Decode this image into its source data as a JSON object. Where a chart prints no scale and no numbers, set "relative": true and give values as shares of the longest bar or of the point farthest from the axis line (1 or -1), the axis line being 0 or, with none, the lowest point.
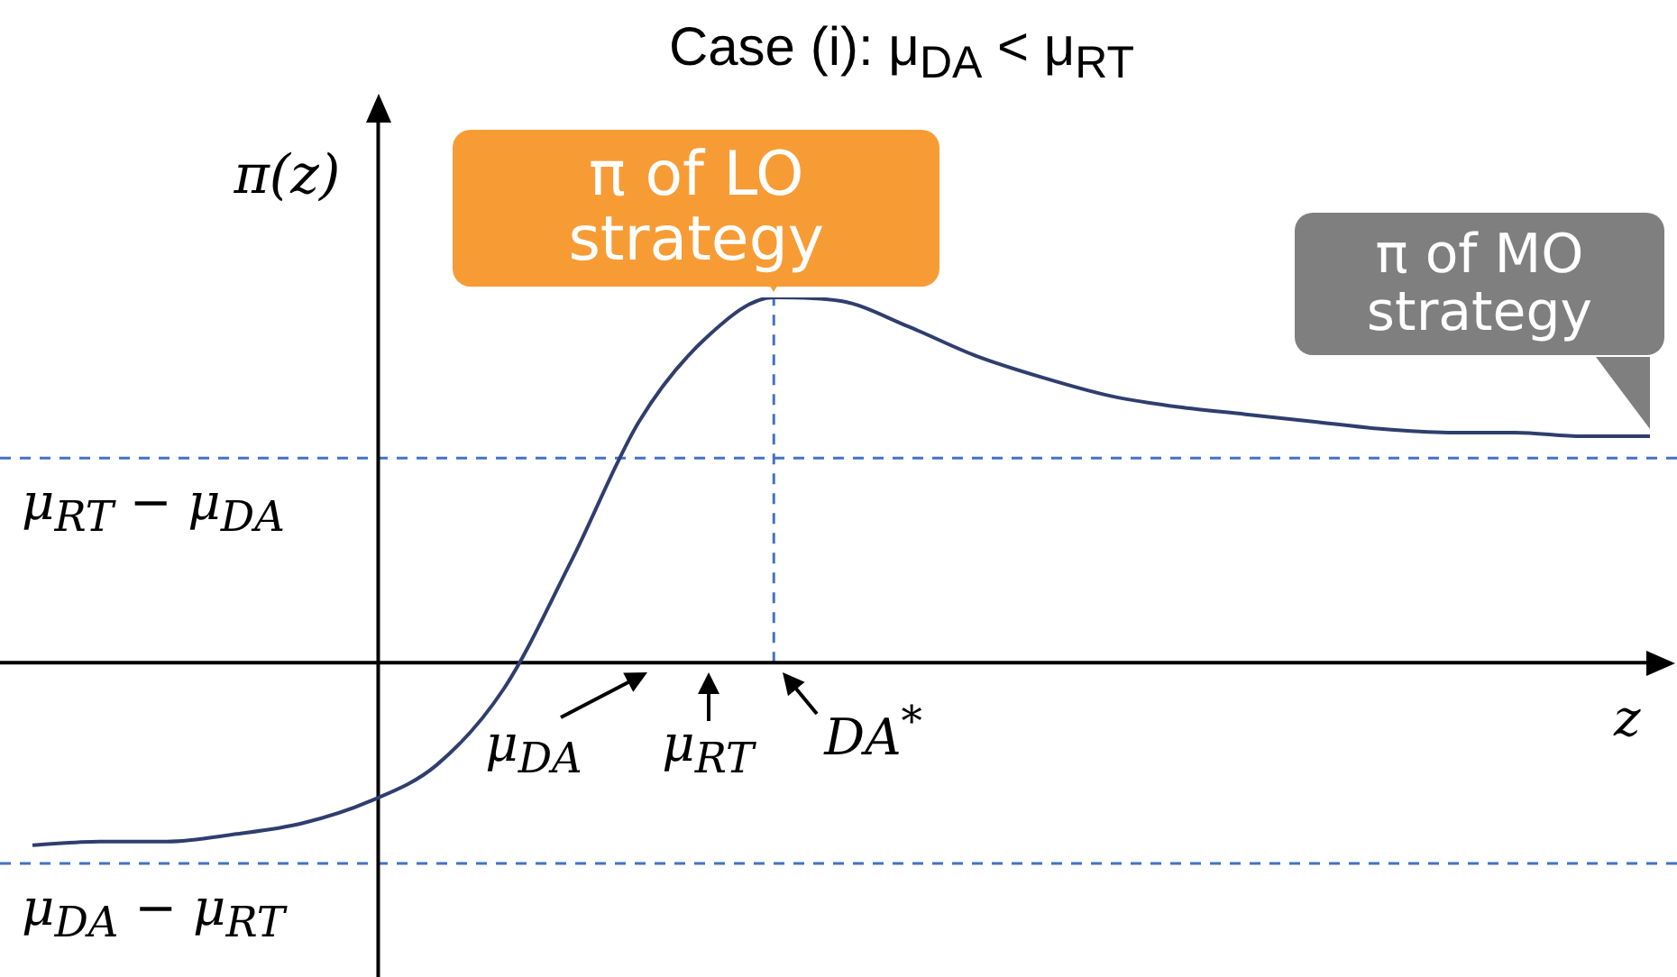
{
  "chart_data": {
    "type": "line",
    "title": "Case (i): μ$_{DA}$ < μ$_{RT}$",
    "xlabel": "z",
    "relative": true,
    "marker": "none",
    "line_style": "solid",
    "categories": [
      null,
      null,
      null,
      null,
      null,
      null,
      null,
      null,
      null,
      null,
      null,
      null,
      null,
      null,
      null,
      null,
      null,
      null,
      null,
      null,
      null,
      null,
      null,
      null,
      null
    ],
    "series": [
      {
        "color": "#2f3e6e",
        "values": [
          -0.5,
          -0.49,
          -0.49,
          -0.47,
          -0.44,
          -0.38,
          -0.28,
          -0.07,
          0.28,
          0.66,
          0.89,
          1,
          0.99,
          0.92,
          0.84,
          0.78,
          0.73,
          0.7,
          0.68,
          0.66,
          0.64,
          0.63,
          0.63,
          0.62,
          0.62
        ]
      }
    ],
    "ref_lines": [
      {
        "axis": "y",
        "value": 0.56,
        "label": "μ$_{RT}$ − μ$_{DA}$",
        "color": "#4472c4",
        "line_style": "dashed"
      },
      {
        "axis": "y",
        "value": -0.55,
        "label": "μ$_{DA}$ − μ$_{RT}$",
        "color": "#4472c4",
        "line_style": "dashed"
      }
    ],
    "annotations": [
      "π of LO strategy",
      "π of MO strategy",
      "μ$_{DA}$",
      "μ$_{RT}$",
      "DA$^{*}$",
      "π(z)"
    ]
  }
}
